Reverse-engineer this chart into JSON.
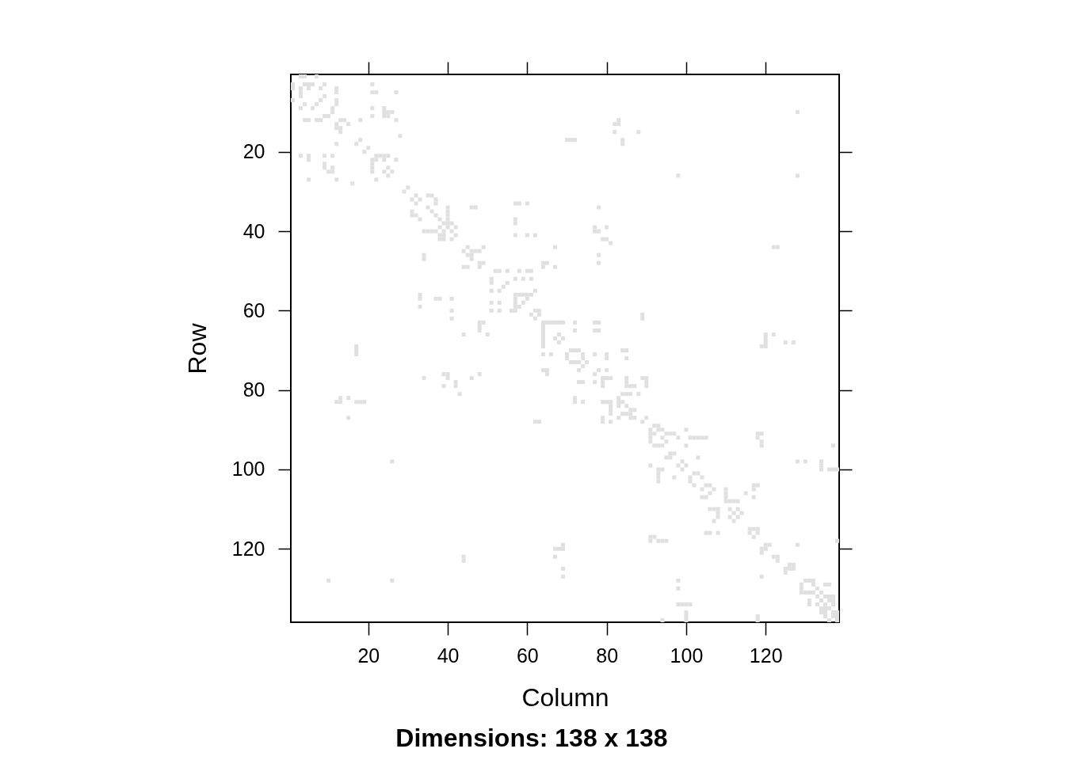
{
  "chart_data": {
    "type": "scatter",
    "title": "Dimensions: 138 x 138",
    "xlabel": "Column",
    "ylabel": "Row",
    "marker": "square",
    "xlim": [
      0.5,
      138.5
    ],
    "ylim": [
      138.5,
      0.5
    ],
    "xticks": [
      20,
      40,
      60,
      80,
      100,
      120
    ],
    "yticks": [
      20,
      40,
      60,
      80,
      100,
      120
    ],
    "series": [
      {
        "color": "#e0e0e0",
        "x": [
          3,
          4,
          7,
          1,
          1,
          4,
          5,
          6,
          9,
          21,
          3,
          3,
          3,
          5,
          8,
          12,
          12,
          21,
          22,
          27,
          9,
          1,
          8,
          12,
          12,
          4,
          7,
          3,
          6,
          11,
          11,
          21,
          24,
          24,
          25,
          26,
          9,
          10,
          21,
          24,
          25,
          4,
          5,
          7,
          8,
          13,
          14,
          18,
          27,
          12,
          15,
          12,
          13,
          13,
          28,
          18,
          12,
          17,
          20,
          19,
          3,
          5,
          5,
          9,
          11,
          22,
          23,
          24,
          25,
          21,
          22,
          24,
          27,
          9,
          21,
          21,
          21,
          9,
          10,
          11,
          11,
          24,
          25,
          26,
          25,
          5,
          12,
          22,
          16,
          30,
          29,
          32,
          31,
          33,
          32,
          35,
          36,
          37,
          37,
          46,
          47,
          31,
          31,
          32,
          33,
          35,
          36,
          37,
          40,
          40,
          40,
          40,
          38,
          39,
          40,
          41,
          38,
          40,
          42,
          39,
          41,
          34,
          35,
          36,
          37,
          38,
          39,
          38,
          39,
          41,
          42,
          45,
          44,
          46,
          45,
          46,
          46,
          44,
          45,
          34,
          34,
          33,
          33,
          37,
          38,
          41,
          33,
          41,
          41,
          44,
          17,
          17,
          17,
          34,
          39,
          40,
          40,
          46,
          39,
          42,
          42,
          43,
          13,
          12,
          13,
          15,
          17,
          18,
          19,
          15,
          26,
          44,
          44,
          10,
          26,
          83,
          82,
          83,
          82,
          88,
          84,
          84,
          70,
          71,
          72,
          57,
          58,
          60,
          78,
          57,
          57,
          77,
          77,
          78,
          80,
          57,
          60,
          62,
          79,
          80,
          81,
          67,
          47,
          48,
          49,
          78,
          78,
          48,
          49,
          48,
          64,
          65,
          64,
          67,
          52,
          53,
          55,
          58,
          60,
          61,
          51,
          51,
          57,
          59,
          61,
          55,
          54,
          53,
          51,
          62,
          57,
          58,
          59,
          60,
          61,
          57,
          57,
          60,
          59,
          58,
          57,
          57,
          51,
          53,
          51,
          53,
          56,
          62,
          63,
          61,
          63,
          62,
          89,
          89,
          64,
          65,
          66,
          67,
          68,
          69,
          72,
          77,
          78,
          48,
          49,
          48,
          48,
          64,
          64,
          64,
          64,
          64,
          64,
          72,
          77,
          78,
          50,
          68,
          67,
          69,
          68,
          71,
          72,
          73,
          70,
          74,
          70,
          74,
          71,
          72,
          73,
          64,
          66,
          77,
          80,
          80,
          84,
          85,
          85,
          48,
          64,
          65,
          65,
          75,
          74,
          73,
          78,
          80,
          77,
          79,
          80,
          81,
          79,
          79,
          85,
          85,
          85,
          86,
          87,
          89,
          90,
          90,
          90,
          73,
          74,
          77,
          84,
          85,
          86,
          88,
          72,
          72,
          74,
          79,
          80,
          81,
          81,
          81,
          81,
          83,
          83,
          83,
          84,
          85,
          86,
          87,
          85,
          86,
          84,
          83,
          86,
          87,
          62,
          63,
          79,
          79,
          81,
          90,
          89,
          92,
          93,
          91,
          93,
          91,
          92,
          91,
          91,
          92,
          93,
          91,
          93,
          93,
          93,
          93,
          91,
          92,
          91,
          93,
          69,
          67,
          68,
          69,
          67,
          69,
          69,
          128,
          98,
          128,
          122,
          123,
          120,
          120,
          120,
          119,
          120,
          122,
          125,
          127,
          94,
          95,
          96,
          97,
          98,
          94,
          95,
          94,
          100,
          101,
          102,
          103,
          104,
          105,
          100,
          118,
          119,
          118,
          119,
          119,
          137,
          96,
          97,
          95,
          96,
          103,
          99,
          98,
          100,
          99,
          94,
          128,
          130,
          134,
          134,
          134,
          136,
          137,
          138,
          102,
          103,
          101,
          101,
          104,
          102,
          97,
          105,
          106,
          107,
          104,
          106,
          105,
          104,
          110,
          110,
          110,
          110,
          111,
          112,
          113,
          115,
          117,
          118,
          117,
          117,
          106,
          107,
          108,
          108,
          111,
          113,
          112,
          111,
          113,
          112,
          114,
          107,
          108,
          105,
          106,
          108,
          94,
          95,
          138,
          116,
          117,
          118,
          116,
          117,
          118,
          120,
          121,
          119,
          119,
          120,
          122,
          123,
          123,
          128,
          126,
          127,
          125,
          126,
          125,
          127,
          119,
          98,
          130,
          131,
          132,
          129,
          132,
          135,
          136,
          129,
          133,
          129,
          130,
          131,
          132,
          134,
          133,
          135,
          136,
          137,
          134,
          136,
          137,
          131,
          131,
          133,
          135,
          137,
          134,
          135,
          136,
          134,
          135,
          137,
          138,
          135,
          137,
          138,
          138,
          136,
          98,
          98,
          99,
          100,
          101,
          100,
          100,
          100,
          94,
          118,
          118
        ],
        "values": [
          1,
          1,
          1,
          3,
          4,
          3,
          3,
          3,
          3,
          3,
          4,
          5,
          6,
          4,
          4,
          4,
          5,
          5,
          5,
          5,
          6,
          7,
          7,
          7,
          8,
          8,
          8,
          9,
          9,
          9,
          10,
          9,
          9,
          10,
          10,
          10,
          11,
          11,
          11,
          11,
          11,
          12,
          12,
          12,
          12,
          12,
          12,
          12,
          12,
          13,
          13,
          14,
          14,
          15,
          16,
          17,
          18,
          18,
          19,
          20,
          21,
          21,
          22,
          21,
          21,
          21,
          21,
          21,
          21,
          22,
          22,
          22,
          22,
          23,
          23,
          24,
          25,
          24,
          25,
          24,
          25,
          25,
          24,
          25,
          26,
          27,
          27,
          27,
          28,
          29,
          30,
          31,
          32,
          32,
          33,
          31,
          31,
          32,
          33,
          34,
          34,
          35,
          36,
          36,
          37,
          34,
          35,
          36,
          34,
          35,
          36,
          37,
          37,
          38,
          38,
          38,
          39,
          39,
          39,
          40,
          40,
          40,
          40,
          40,
          40,
          41,
          41,
          42,
          42,
          42,
          41,
          44,
          45,
          45,
          46,
          46,
          47,
          49,
          49,
          46,
          47,
          56,
          57,
          57,
          57,
          57,
          59,
          60,
          62,
          66,
          69,
          70,
          71,
          77,
          76,
          76,
          77,
          77,
          79,
          78,
          79,
          81,
          82,
          83,
          83,
          82,
          83,
          83,
          83,
          87,
          98,
          122,
          123,
          128,
          128,
          12,
          13,
          13,
          15,
          15,
          17,
          18,
          17,
          17,
          17,
          33,
          33,
          33,
          34,
          37,
          38,
          39,
          40,
          40,
          39,
          41,
          41,
          41,
          42,
          42,
          43,
          44,
          45,
          45,
          44,
          46,
          48,
          48,
          48,
          49,
          48,
          48,
          49,
          49,
          50,
          50,
          50,
          50,
          50,
          50,
          52,
          53,
          52,
          52,
          52,
          53,
          54,
          55,
          55,
          55,
          56,
          56,
          56,
          56,
          56,
          57,
          58,
          57,
          58,
          59,
          59,
          60,
          58,
          58,
          60,
          60,
          60,
          60,
          60,
          61,
          61,
          62,
          61,
          62,
          63,
          63,
          63,
          63,
          63,
          63,
          63,
          63,
          63,
          63,
          63,
          64,
          65,
          64,
          65,
          66,
          67,
          68,
          69,
          65,
          65,
          65,
          66,
          66,
          67,
          67,
          68,
          70,
          70,
          70,
          71,
          71,
          72,
          72,
          73,
          73,
          73,
          71,
          71,
          71,
          71,
          72,
          70,
          70,
          72,
          76,
          75,
          75,
          76,
          73,
          74,
          75,
          75,
          75,
          76,
          77,
          77,
          77,
          78,
          79,
          77,
          78,
          79,
          79,
          79,
          77,
          77,
          78,
          79,
          78,
          78,
          78,
          81,
          81,
          81,
          81,
          82,
          83,
          83,
          83,
          83,
          83,
          84,
          85,
          86,
          82,
          83,
          84,
          83,
          84,
          85,
          85,
          86,
          86,
          86,
          87,
          87,
          87,
          88,
          88,
          87,
          88,
          88,
          87,
          88,
          89,
          89,
          90,
          90,
          91,
          91,
          92,
          93,
          94,
          94,
          99,
          100,
          101,
          102,
          103,
          117,
          117,
          118,
          118,
          119,
          120,
          120,
          120,
          122,
          125,
          127,
          10,
          26,
          26,
          44,
          44,
          66,
          67,
          68,
          69,
          69,
          66,
          68,
          68,
          90,
          91,
          91,
          91,
          92,
          92,
          93,
          94,
          90,
          92,
          92,
          92,
          92,
          92,
          94,
          91,
          91,
          92,
          93,
          94,
          94,
          96,
          96,
          97,
          97,
          97,
          98,
          99,
          99,
          100,
          100,
          98,
          98,
          98,
          99,
          100,
          100,
          100,
          100,
          101,
          101,
          102,
          103,
          102,
          104,
          102,
          104,
          104,
          105,
          105,
          106,
          107,
          107,
          105,
          106,
          107,
          108,
          108,
          108,
          108,
          106,
          104,
          104,
          105,
          107,
          110,
          110,
          110,
          111,
          110,
          110,
          111,
          112,
          112,
          113,
          111,
          113,
          112,
          116,
          116,
          116,
          118,
          118,
          118,
          115,
          115,
          115,
          116,
          117,
          116,
          119,
          119,
          120,
          121,
          120,
          122,
          122,
          123,
          119,
          124,
          124,
          125,
          125,
          126,
          125,
          127,
          128,
          128,
          128,
          128,
          129,
          129,
          129,
          129,
          130,
          130,
          131,
          131,
          131,
          131,
          131,
          132,
          132,
          132,
          132,
          133,
          133,
          133,
          133,
          134,
          134,
          134,
          134,
          135,
          135,
          135,
          136,
          136,
          136,
          136,
          137,
          137,
          137,
          138,
          138,
          130,
          134,
          134,
          134,
          134,
          136,
          137,
          138,
          138,
          137,
          138
        ]
      }
    ]
  }
}
